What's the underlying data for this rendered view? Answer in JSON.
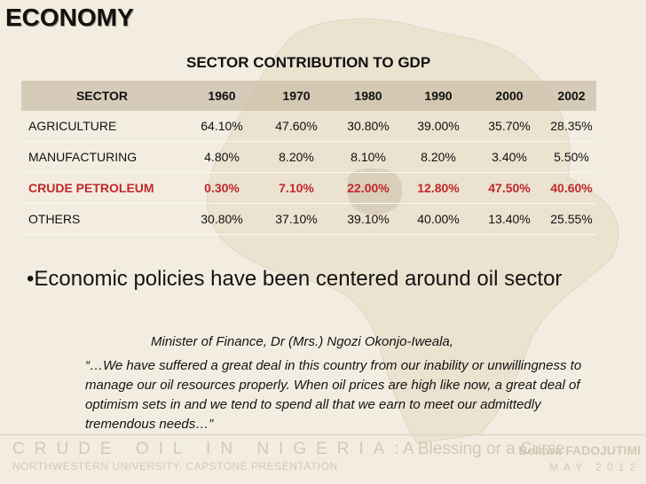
{
  "slide": {
    "title": "ECONOMY"
  },
  "table": {
    "title": "SECTOR CONTRIBUTION TO GDP",
    "headers": [
      "SECTOR",
      "1960",
      "1970",
      "1980",
      "1990",
      "2000",
      "2002"
    ],
    "rows": [
      {
        "sector": "AGRICULTURE",
        "values": [
          "64.10%",
          "47.60%",
          "30.80%",
          "39.00%",
          "35.70%",
          "28.35%"
        ]
      },
      {
        "sector": "MANUFACTURING",
        "values": [
          "4.80%",
          "8.20%",
          "8.10%",
          "8.20%",
          "3.40%",
          "5.50%"
        ]
      },
      {
        "sector": "CRUDE PETROLEUM",
        "values": [
          "0.30%",
          "7.10%",
          "22.00%",
          "12.80%",
          "47.50%",
          "40.60%"
        ]
      },
      {
        "sector": "OTHERS",
        "values": [
          "30.80%",
          "37.10%",
          "39.10%",
          "40.00%",
          "13.40%",
          "25.55%"
        ]
      }
    ],
    "highlight_color": "#c0282b"
  },
  "body": {
    "bullet": "•Economic policies have been centered around oil sector",
    "attribution": "Minister of Finance, Dr (Mrs.) Ngozi Okonjo-Iweala,",
    "quote": "“…We have suffered a great deal in this country from our inability or unwillingness to manage our oil resources properly. When oil prices are high like now, a great deal of optimism sets in and we tend to spend all that we earn to meet our admittedly tremendous needs…”"
  },
  "footer": {
    "title_spaced": "CRUDE OIL IN NIGERIA",
    "title_rest": ": A Blessing or a Curse",
    "subtitle": "NORTHWESTERN UNIVERSITY, CAPSTONE PRESENTATION",
    "author": "Bolawa FADOJUTIMI",
    "date": "MAY 2012"
  }
}
